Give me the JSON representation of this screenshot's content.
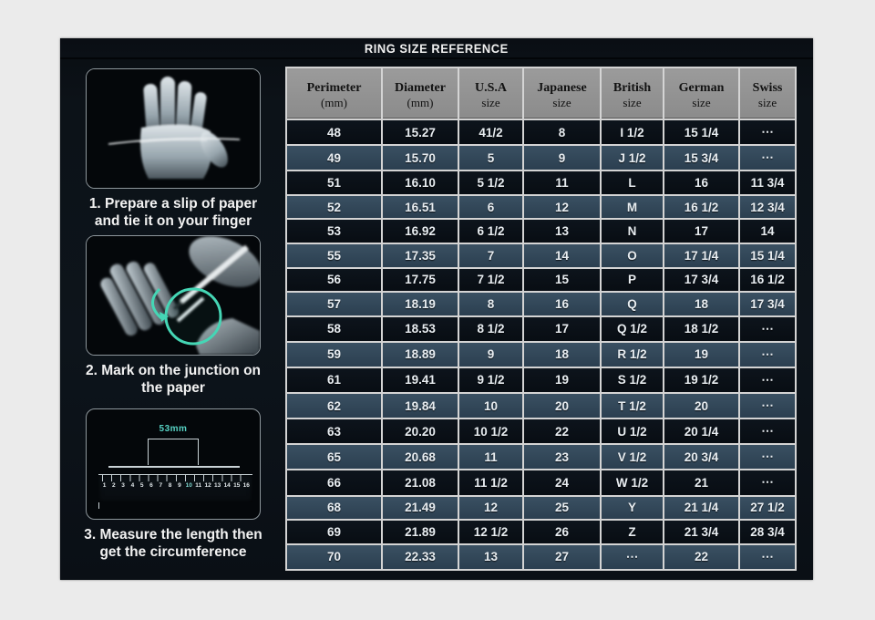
{
  "title_bar": {
    "title": "RING SIZE REFERENCE"
  },
  "steps": [
    {
      "image": "hand-with-paper-strip",
      "caption_lines": [
        "1. Prepare a slip of paper",
        "and tie it on your finger"
      ]
    },
    {
      "image": "pen-marking-junction",
      "caption_lines": [
        "2. Mark on the junction on",
        "the paper"
      ]
    },
    {
      "image": "ruler-measurement",
      "caption_lines": [
        "3. Measure the length then",
        "get the circumference"
      ]
    }
  ],
  "ruler": {
    "label": "53mm",
    "numbers": [
      "1",
      "2",
      "3",
      "4",
      "5",
      "6",
      "7",
      "8",
      "9",
      "10",
      "11",
      "12",
      "13",
      "14",
      "15",
      "16"
    ],
    "highlight": "10"
  },
  "chart_data": {
    "type": "table",
    "title": "RING SIZE REFERENCE",
    "columns": [
      {
        "line1": "Perimeter",
        "line2": "(mm)"
      },
      {
        "line1": "Diameter",
        "line2": "(mm)"
      },
      {
        "line1": "U.S.A",
        "line2": "size"
      },
      {
        "line1": "Japanese",
        "line2": "size"
      },
      {
        "line1": "British",
        "line2": "size"
      },
      {
        "line1": "German",
        "line2": "size"
      },
      {
        "line1": "Swiss",
        "line2": "size"
      }
    ],
    "rows": [
      [
        "48",
        "15.27",
        "41/2",
        "8",
        "I 1/2",
        "15 1/4",
        "⋯"
      ],
      [
        "49",
        "15.70",
        "5",
        "9",
        "J 1/2",
        "15 3/4",
        "⋯"
      ],
      [
        "51",
        "16.10",
        "5 1/2",
        "11",
        "L",
        "16",
        "11 3/4"
      ],
      [
        "52",
        "16.51",
        "6",
        "12",
        "M",
        "16 1/2",
        "12 3/4"
      ],
      [
        "53",
        "16.92",
        "6 1/2",
        "13",
        "N",
        "17",
        "14"
      ],
      [
        "55",
        "17.35",
        "7",
        "14",
        "O",
        "17 1/4",
        "15 1/4"
      ],
      [
        "56",
        "17.75",
        "7 1/2",
        "15",
        "P",
        "17 3/4",
        "16 1/2"
      ],
      [
        "57",
        "18.19",
        "8",
        "16",
        "Q",
        "18",
        "17 3/4"
      ],
      [
        "58",
        "18.53",
        "8 1/2",
        "17",
        "Q 1/2",
        "18 1/2",
        "⋯"
      ],
      [
        "59",
        "18.89",
        "9",
        "18",
        "R 1/2",
        "19",
        "⋯"
      ],
      [
        "61",
        "19.41",
        "9 1/2",
        "19",
        "S 1/2",
        "19 1/2",
        "⋯"
      ],
      [
        "62",
        "19.84",
        "10",
        "20",
        "T 1/2",
        "20",
        "⋯"
      ],
      [
        "63",
        "20.20",
        "10 1/2",
        "22",
        "U 1/2",
        "20 1/4",
        "⋯"
      ],
      [
        "65",
        "20.68",
        "11",
        "23",
        "V 1/2",
        "20 3/4",
        "⋯"
      ],
      [
        "66",
        "21.08",
        "11 1/2",
        "24",
        "W 1/2",
        "21",
        "⋯"
      ],
      [
        "68",
        "21.49",
        "12",
        "25",
        "Y",
        "21 1/4",
        "27 1/2"
      ],
      [
        "69",
        "21.89",
        "12 1/2",
        "26",
        "Z",
        "21 3/4",
        "28 3/4"
      ],
      [
        "70",
        "22.33",
        "13",
        "27",
        "⋯",
        "22",
        "⋯"
      ]
    ]
  },
  "colors": {
    "page_background": "#ebebeb",
    "panel_background": "#0c1218",
    "row_dark": "#0b1118",
    "row_light": "#314657",
    "header_background": "#8f8f8f",
    "grid_border": "#d4d4d4",
    "accent_teal": "#45d6b5",
    "text_light": "#f0f0f0"
  }
}
